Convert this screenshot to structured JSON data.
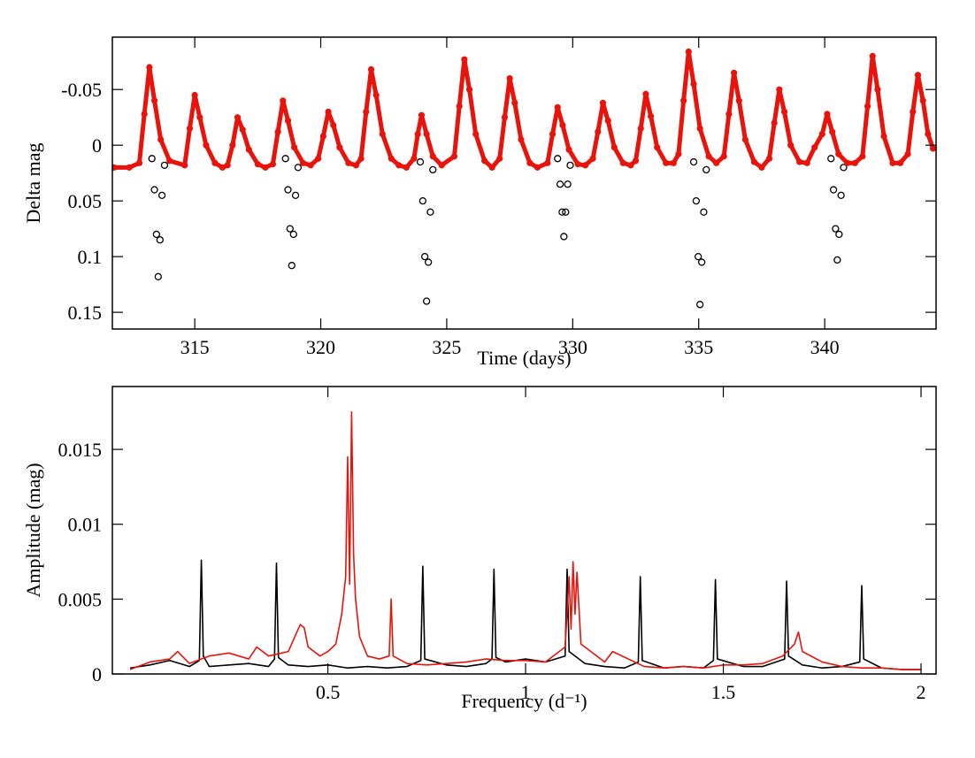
{
  "chart_data": [
    {
      "type": "scatter",
      "x_label": "Time (days)",
      "y_label": "Delta mag",
      "xlim": [
        311.73,
        344.42
      ],
      "xticks": [
        315,
        320,
        325,
        330,
        335,
        340
      ],
      "ylim": [
        0.165,
        -0.097
      ],
      "yticks": [
        -0.05,
        0,
        0.05,
        0.1,
        0.15
      ],
      "series": [
        {
          "color": "#000000",
          "marker": "open-circle",
          "x": [
            313.3,
            313.4,
            313.48,
            313.55,
            313.62,
            313.7,
            313.8,
            318.6,
            318.7,
            318.78,
            318.85,
            318.92,
            319.0,
            319.1,
            323.95,
            324.05,
            324.13,
            324.2,
            324.27,
            324.35,
            324.45,
            329.4,
            329.5,
            329.58,
            329.65,
            329.72,
            329.8,
            329.9,
            334.8,
            334.9,
            334.98,
            335.05,
            335.12,
            335.2,
            335.3,
            340.25,
            340.35,
            340.43,
            340.5,
            340.57,
            340.65,
            340.75
          ],
          "values": [
            0.012,
            0.04,
            0.08,
            0.118,
            0.085,
            0.045,
            0.018,
            0.012,
            0.04,
            0.075,
            0.108,
            0.08,
            0.045,
            0.02,
            0.015,
            0.05,
            0.1,
            0.14,
            0.105,
            0.06,
            0.022,
            0.012,
            0.035,
            0.06,
            0.082,
            0.06,
            0.035,
            0.018,
            0.015,
            0.05,
            0.1,
            0.143,
            0.105,
            0.06,
            0.022,
            0.012,
            0.04,
            0.075,
            0.103,
            0.08,
            0.045,
            0.02
          ]
        },
        {
          "color": "#e8140c",
          "marker": "filled-circle",
          "x": [
            311.8,
            312.4,
            312.8,
            313.0,
            313.2,
            313.4,
            313.65,
            314.0,
            314.6,
            314.8,
            315.0,
            315.2,
            315.45,
            315.8,
            316.1,
            316.3,
            316.5,
            316.7,
            316.9,
            317.15,
            317.5,
            317.8,
            318.1,
            318.3,
            318.5,
            318.7,
            318.95,
            319.3,
            319.6,
            319.9,
            320.1,
            320.3,
            320.5,
            320.75,
            321.1,
            321.4,
            321.6,
            321.8,
            322.0,
            322.2,
            322.45,
            322.8,
            323.1,
            323.4,
            323.7,
            323.85,
            324.0,
            324.2,
            324.45,
            324.8,
            325.3,
            325.5,
            325.7,
            325.9,
            326.15,
            326.5,
            326.8,
            327.1,
            327.3,
            327.5,
            327.7,
            327.95,
            328.3,
            328.6,
            329.0,
            329.2,
            329.4,
            329.6,
            329.85,
            330.2,
            330.5,
            330.8,
            331.0,
            331.2,
            331.4,
            331.65,
            332.0,
            332.3,
            332.5,
            332.7,
            332.9,
            333.1,
            333.35,
            333.7,
            334.0,
            334.2,
            334.4,
            334.6,
            334.8,
            335.05,
            335.4,
            335.7,
            336.0,
            336.2,
            336.4,
            336.6,
            336.85,
            337.2,
            337.5,
            337.8,
            338.0,
            338.2,
            338.4,
            338.65,
            339.0,
            339.3,
            339.6,
            339.9,
            340.1,
            340.3,
            340.55,
            340.9,
            341.2,
            341.5,
            341.7,
            341.9,
            342.1,
            342.35,
            342.7,
            343.0,
            343.3,
            343.5,
            343.7,
            343.9,
            344.1,
            344.3
          ],
          "values": [
            0.02,
            0.02,
            0.016,
            -0.028,
            -0.07,
            -0.04,
            -0.005,
            0.014,
            0.018,
            -0.015,
            -0.045,
            -0.025,
            0.0,
            0.016,
            0.02,
            0.018,
            0.0,
            -0.025,
            -0.014,
            0.004,
            0.017,
            0.02,
            0.017,
            -0.012,
            -0.04,
            -0.022,
            0.002,
            0.016,
            0.018,
            0.012,
            -0.008,
            -0.03,
            -0.018,
            0.002,
            0.016,
            0.018,
            0.012,
            -0.03,
            -0.068,
            -0.045,
            -0.01,
            0.012,
            0.018,
            0.02,
            0.012,
            -0.01,
            -0.027,
            -0.01,
            0.01,
            0.018,
            0.01,
            -0.035,
            -0.077,
            -0.05,
            -0.01,
            0.014,
            0.02,
            0.012,
            -0.025,
            -0.06,
            -0.038,
            -0.005,
            0.016,
            0.02,
            0.016,
            -0.01,
            -0.034,
            -0.018,
            0.004,
            0.017,
            0.018,
            0.012,
            -0.012,
            -0.038,
            -0.022,
            0.002,
            0.016,
            0.018,
            0.014,
            -0.015,
            -0.046,
            -0.026,
            0.002,
            0.016,
            0.016,
            0.008,
            -0.04,
            -0.084,
            -0.055,
            -0.015,
            0.01,
            0.016,
            0.01,
            -0.028,
            -0.065,
            -0.04,
            -0.005,
            0.015,
            0.02,
            0.012,
            -0.02,
            -0.05,
            -0.03,
            0.0,
            0.015,
            0.016,
            0.002,
            -0.01,
            -0.028,
            -0.012,
            0.008,
            0.016,
            0.016,
            0.01,
            -0.035,
            -0.08,
            -0.05,
            -0.008,
            0.016,
            0.016,
            0.008,
            -0.03,
            -0.063,
            -0.04,
            -0.01,
            0.003
          ]
        }
      ]
    },
    {
      "type": "line",
      "x_label": "Frequency (d⁻¹)",
      "y_label": "Amplitude (mag)",
      "xlim": [
        -0.045,
        2.038
      ],
      "xticks": [
        0.5,
        1,
        1.5,
        2
      ],
      "ylim": [
        0,
        0.0192
      ],
      "yticks": [
        0,
        0.005,
        0.01,
        0.015
      ],
      "series": [
        {
          "color": "#000000",
          "x": [
            0.0,
            0.05,
            0.1,
            0.15,
            0.175,
            0.18,
            0.185,
            0.2,
            0.25,
            0.3,
            0.35,
            0.365,
            0.37,
            0.375,
            0.4,
            0.45,
            0.5,
            0.55,
            0.6,
            0.65,
            0.7,
            0.735,
            0.74,
            0.745,
            0.8,
            0.85,
            0.9,
            0.915,
            0.92,
            0.925,
            0.95,
            1.0,
            1.05,
            1.1,
            1.105,
            1.11,
            1.15,
            1.2,
            1.25,
            1.285,
            1.29,
            1.295,
            1.35,
            1.4,
            1.45,
            1.475,
            1.48,
            1.485,
            1.55,
            1.6,
            1.655,
            1.66,
            1.665,
            1.7,
            1.75,
            1.8,
            1.845,
            1.85,
            1.855,
            1.9,
            1.95,
            2.0
          ],
          "values": [
            0.0004,
            0.0006,
            0.0009,
            0.0005,
            0.0009,
            0.0076,
            0.0012,
            0.0005,
            0.0006,
            0.0007,
            0.0005,
            0.001,
            0.0074,
            0.0011,
            0.0006,
            0.0005,
            0.0006,
            0.0004,
            0.0005,
            0.0004,
            0.0005,
            0.0009,
            0.0072,
            0.001,
            0.0006,
            0.0005,
            0.0007,
            0.001,
            0.007,
            0.0011,
            0.0008,
            0.001,
            0.0008,
            0.0012,
            0.007,
            0.0015,
            0.0007,
            0.0005,
            0.0004,
            0.0008,
            0.0065,
            0.0009,
            0.0004,
            0.0005,
            0.0004,
            0.0009,
            0.0063,
            0.001,
            0.0005,
            0.0005,
            0.001,
            0.0062,
            0.0012,
            0.0006,
            0.0004,
            0.0005,
            0.0008,
            0.0059,
            0.001,
            0.0004,
            0.0003,
            0.0003
          ]
        },
        {
          "color": "#e8140c",
          "x": [
            0.0,
            0.05,
            0.1,
            0.12,
            0.15,
            0.2,
            0.25,
            0.3,
            0.32,
            0.35,
            0.4,
            0.43,
            0.44,
            0.45,
            0.48,
            0.5,
            0.52,
            0.535,
            0.545,
            0.55,
            0.555,
            0.56,
            0.565,
            0.57,
            0.58,
            0.6,
            0.63,
            0.655,
            0.66,
            0.665,
            0.7,
            0.75,
            0.8,
            0.85,
            0.9,
            0.95,
            1.0,
            1.05,
            1.1,
            1.11,
            1.115,
            1.12,
            1.125,
            1.13,
            1.14,
            1.2,
            1.22,
            1.3,
            1.35,
            1.4,
            1.45,
            1.5,
            1.55,
            1.6,
            1.65,
            1.68,
            1.69,
            1.7,
            1.75,
            1.8,
            1.85,
            1.9,
            1.95,
            2.0
          ],
          "values": [
            0.0003,
            0.0008,
            0.001,
            0.0015,
            0.0007,
            0.0012,
            0.0014,
            0.001,
            0.0018,
            0.0012,
            0.0015,
            0.0033,
            0.0031,
            0.0018,
            0.0012,
            0.0015,
            0.002,
            0.004,
            0.0065,
            0.0145,
            0.006,
            0.0175,
            0.008,
            0.005,
            0.0025,
            0.0012,
            0.001,
            0.0012,
            0.005,
            0.0012,
            0.0007,
            0.0006,
            0.0007,
            0.0008,
            0.001,
            0.0009,
            0.0009,
            0.0008,
            0.0018,
            0.0065,
            0.003,
            0.0075,
            0.004,
            0.0068,
            0.002,
            0.0008,
            0.0015,
            0.0005,
            0.0004,
            0.0005,
            0.0004,
            0.0006,
            0.0006,
            0.0007,
            0.0012,
            0.002,
            0.0028,
            0.0015,
            0.0008,
            0.0005,
            0.0004,
            0.0004,
            0.0003,
            0.0003
          ]
        }
      ]
    }
  ]
}
